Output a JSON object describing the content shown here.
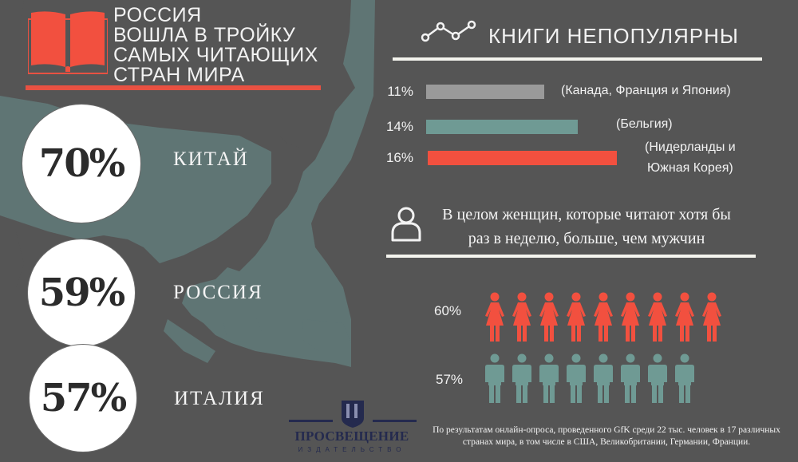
{
  "colors": {
    "background": "#555555",
    "map": "#5f7574",
    "accent_red": "#f2503f",
    "teal": "#6f9a94",
    "gray": "#9a9a9a",
    "white": "#ffffff",
    "logo_navy": "#242a4e"
  },
  "left": {
    "headline": "РОССИЯ\nВОШЛА В ТРОЙКУ\nСАМЫХ ЧИТАЮЩИХ\nСТРАН МИРА",
    "rankings": [
      {
        "value": "70%",
        "country": "КИТАЙ"
      },
      {
        "value": "59%",
        "country": "РОССИЯ"
      },
      {
        "value": "57%",
        "country": "ИТАЛИЯ"
      }
    ]
  },
  "right": {
    "title": "КНИГИ НЕПОПУЛЯРНЫ",
    "bars": [
      {
        "label": "11%",
        "note": "(Канада, Франция и Япония)"
      },
      {
        "label": "14%",
        "note": "(Бельгия)"
      },
      {
        "label": "16%",
        "note_line1": "(Нидерланды и",
        "note_line2": "Южная Корея)"
      }
    ],
    "women_statement_line1": "В целом женщин, которые читают хотя бы",
    "women_statement_line2": "раз в неделю, больше, чем мужчин",
    "women_label": "60%",
    "men_label": "57%"
  },
  "footer": {
    "logo_name": "ПРОСВЕЩЕНИЕ",
    "logo_sub": "ИЗДАТЕЛЬСТВО",
    "footnote": "По результатам онлайн-опроса, проведенного GfK среди 22 тыс. человек в 17 различных странах мира, в том числе в США, Великобритании, Германии, Франции."
  },
  "chart_data": [
    {
      "type": "bar",
      "title": "Читающие страны мира",
      "categories": [
        "Китай",
        "Россия",
        "Италия"
      ],
      "values": [
        70,
        59,
        57
      ],
      "unit": "%"
    },
    {
      "type": "bar",
      "orientation": "horizontal",
      "title": "Книги непопулярны",
      "categories": [
        "Канада, Франция и Япония",
        "Бельгия",
        "Нидерланды и Южная Корея"
      ],
      "values": [
        11,
        14,
        16
      ],
      "unit": "%",
      "colors": [
        "#9a9a9a",
        "#6f9a94",
        "#f2503f"
      ]
    },
    {
      "type": "pictogram",
      "title": "В целом женщин, которые читают хотя бы раз в неделю, больше, чем мужчин",
      "series": [
        {
          "name": "Женщины",
          "value": 60,
          "icons": 9,
          "color": "#f2503f"
        },
        {
          "name": "Мужчины",
          "value": 57,
          "icons": 8,
          "color": "#6f9a94"
        }
      ],
      "unit": "%"
    }
  ]
}
